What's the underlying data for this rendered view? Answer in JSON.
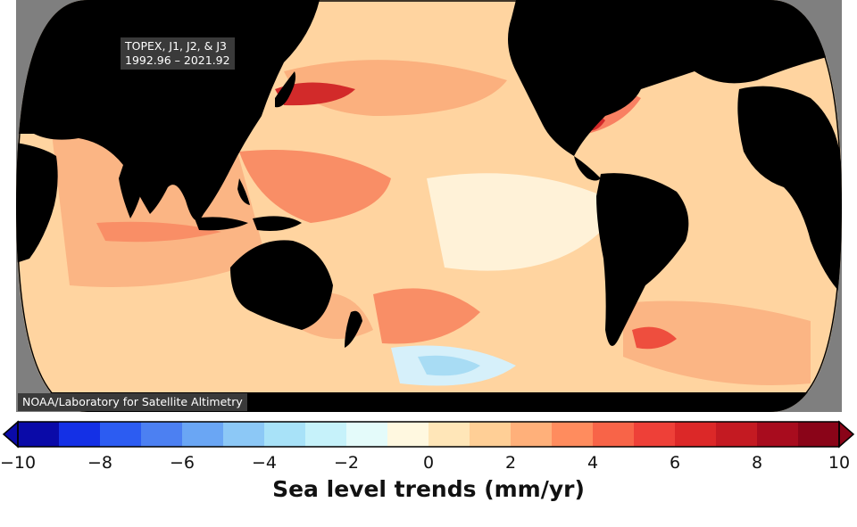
{
  "map": {
    "mission_line1": "TOPEX, J1, J2, & J3",
    "mission_line2": "1992.96 – 2021.92",
    "credit": "NOAA/Laboratory for Satellite Altimetry",
    "projection": "equal-earth, pacific-centered",
    "land_color": "#000000",
    "background_color": "#7f7f7f"
  },
  "colorbar": {
    "title": "Sea level trends (mm/yr)",
    "min": -10,
    "max": 10,
    "step": 1,
    "extend": "both",
    "tick_labels": [
      "−10",
      "−8",
      "−6",
      "−4",
      "−2",
      "0",
      "2",
      "4",
      "6",
      "8",
      "10"
    ],
    "colors": [
      "#0a0aa8",
      "#1430e6",
      "#2c5cf2",
      "#4c80f2",
      "#6aa6f4",
      "#8cc8f6",
      "#a8e2f8",
      "#c6f2fa",
      "#e4fbfa",
      "#fff8e0",
      "#ffe6b8",
      "#ffcf96",
      "#ffb07a",
      "#ff8c5e",
      "#f86448",
      "#ee4038",
      "#dc2828",
      "#c41a22",
      "#a80c1e",
      "#8a0418"
    ]
  }
}
